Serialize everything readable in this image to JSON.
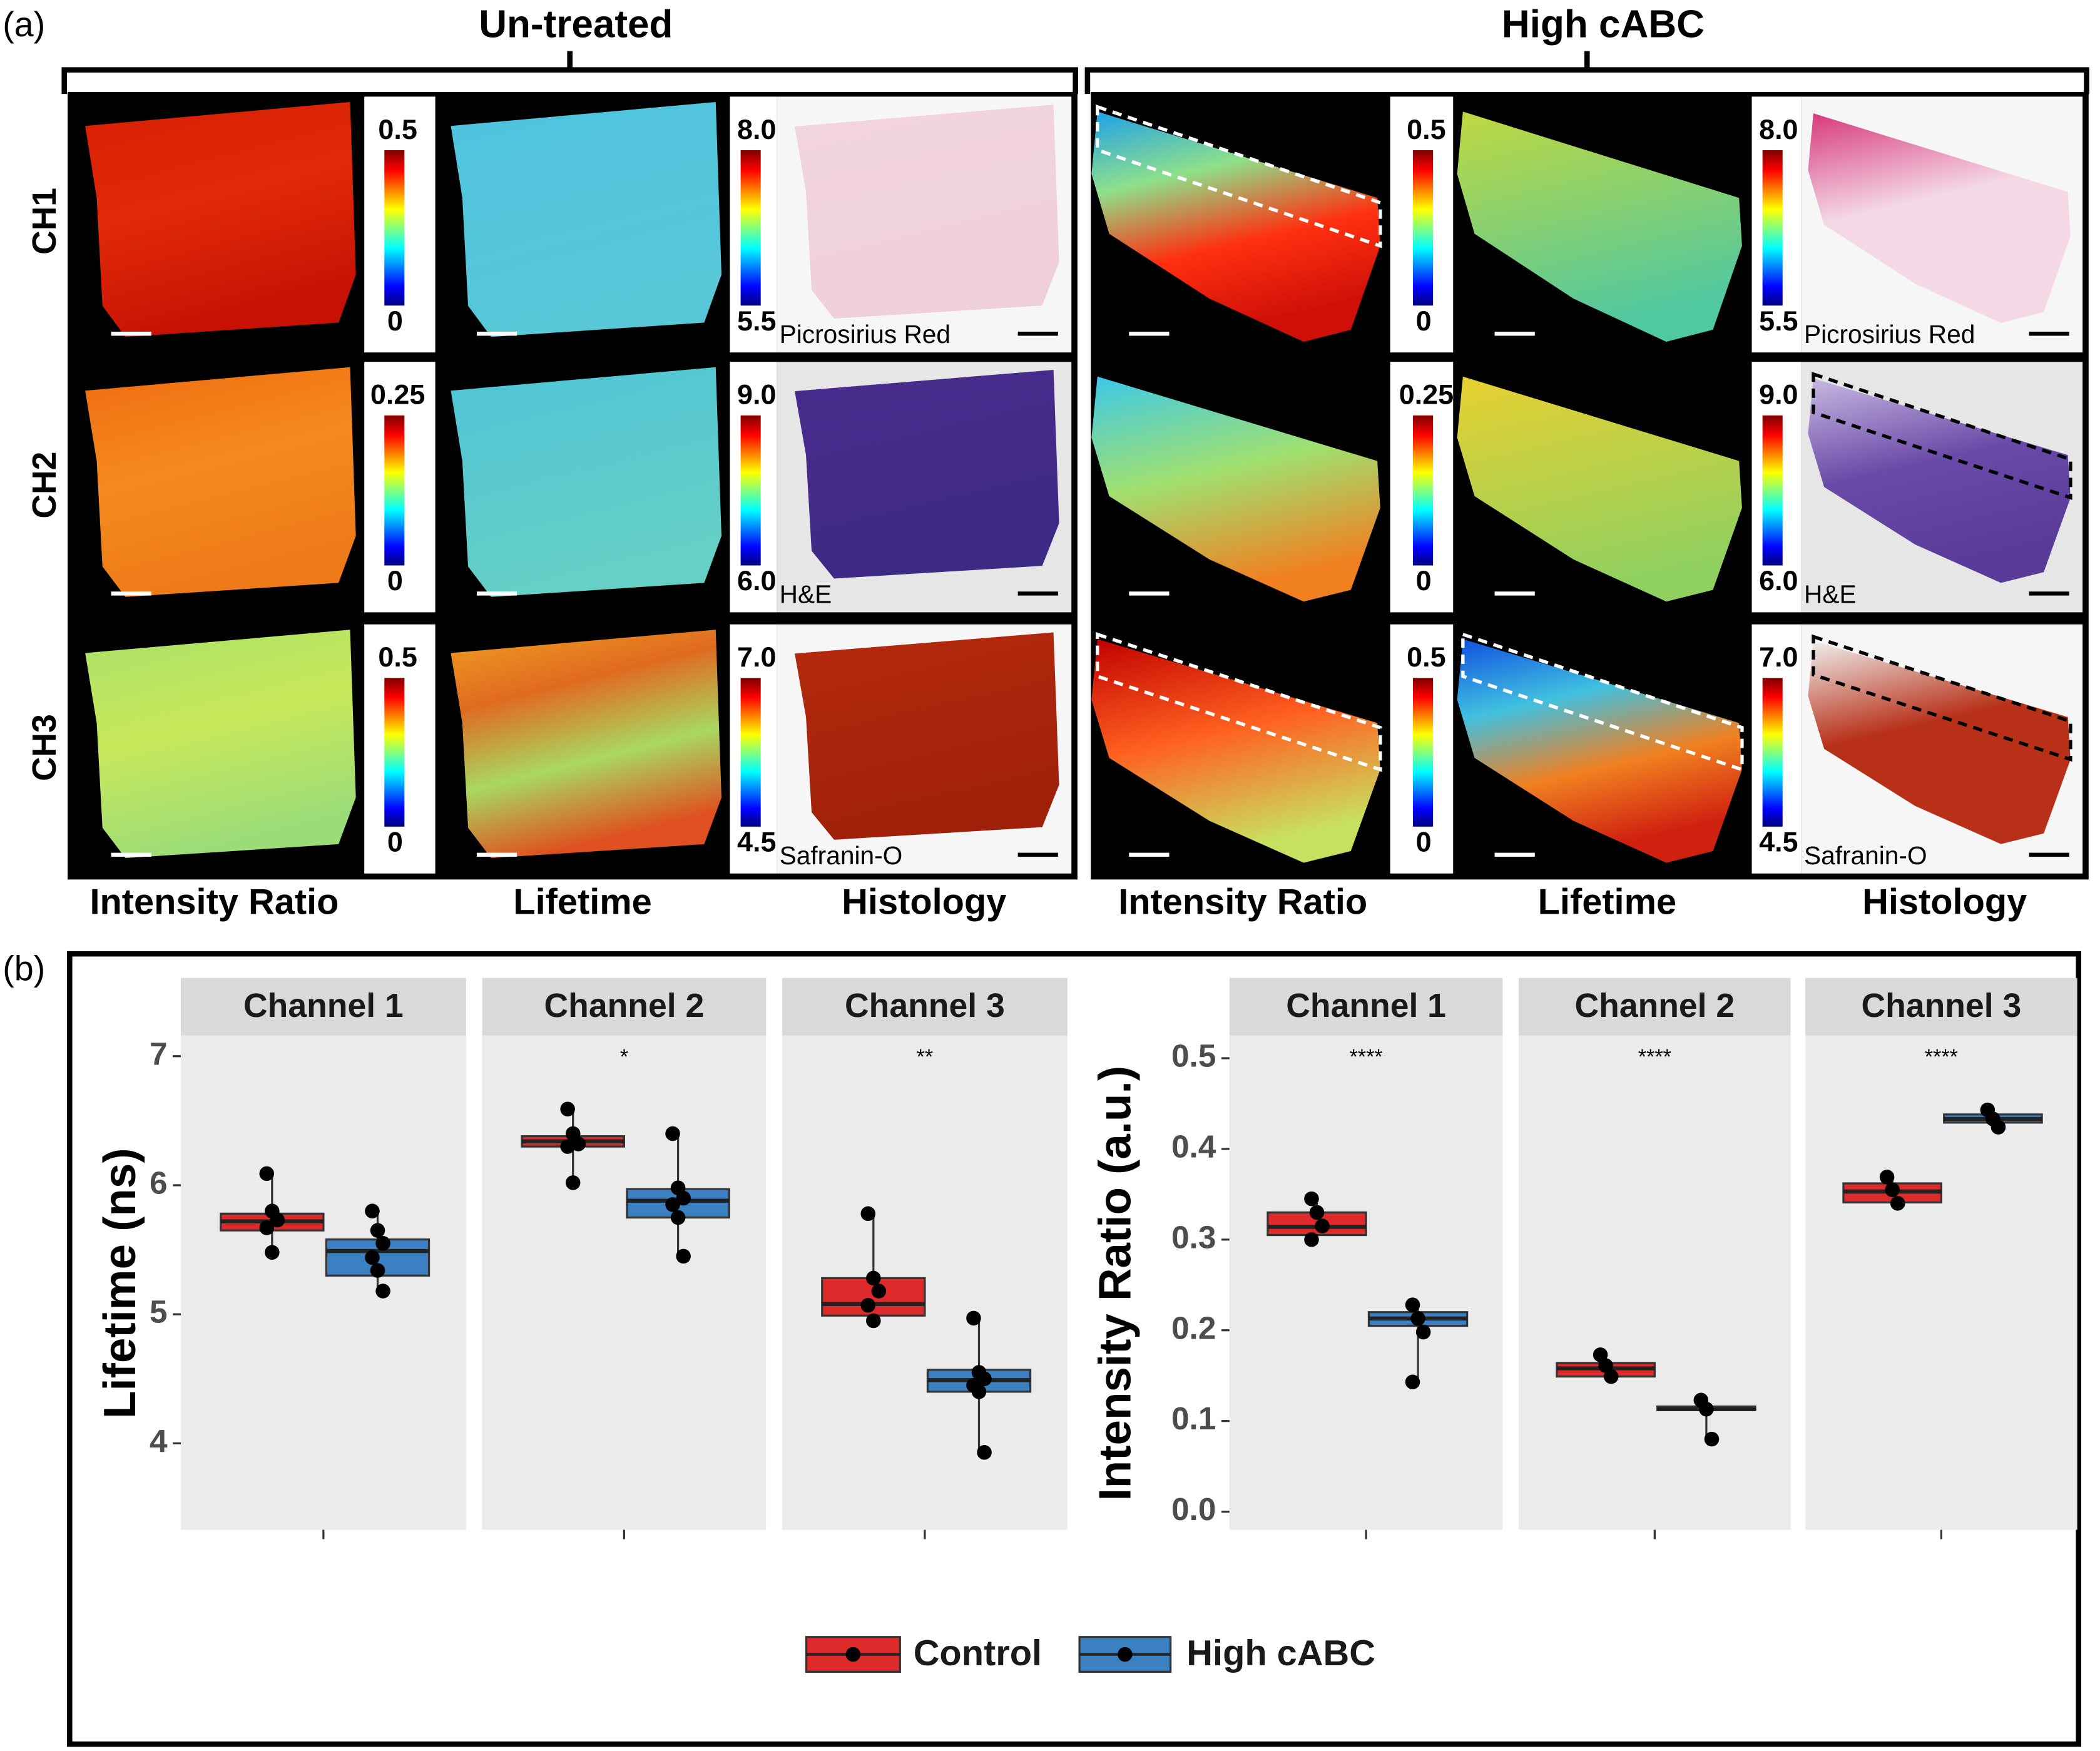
{
  "panel_labels": [
    "(a)",
    "(b)"
  ],
  "imaging": {
    "groups": [
      "Un-treated",
      "High cABC"
    ],
    "rows": [
      "CH1",
      "CH2",
      "CH3"
    ],
    "columns": [
      "Intensity Ratio",
      "Lifetime",
      "Histology"
    ],
    "intensity_scales": [
      {
        "max": "0.5",
        "min": "0"
      },
      {
        "max": "0.25",
        "min": "0"
      },
      {
        "max": "0.5",
        "min": "0"
      }
    ],
    "lifetime_scales": [
      {
        "max": "8.0",
        "min": "5.5"
      },
      {
        "max": "9.0",
        "min": "6.0"
      },
      {
        "max": "7.0",
        "min": "4.5"
      }
    ],
    "stains": [
      "Picrosirius Red",
      "H&E",
      "Safranin-O"
    ]
  },
  "legend": [
    {
      "name": "Control",
      "color": "#dd2a2a"
    },
    {
      "name": "High cABC",
      "color": "#3b80c0"
    }
  ],
  "chart_data": [
    {
      "type": "box",
      "ylabel": "Lifetime (ns)",
      "panels": [
        "Channel 1",
        "Channel 2",
        "Channel 3"
      ],
      "significance": [
        null,
        "*",
        "**"
      ],
      "ylim": [
        3.33,
        7.16
      ],
      "yticks": [
        4,
        5,
        6,
        7
      ],
      "grid": false,
      "series": [
        {
          "boxes": [
            {
              "min": 5.48,
              "q1": 5.65,
              "median": 5.72,
              "q3": 5.78,
              "max": 6.09,
              "points": [
                6.09,
                5.8,
                5.73,
                5.67,
                5.48
              ]
            },
            {
              "min": 6.02,
              "q1": 6.3,
              "median": 6.34,
              "q3": 6.38,
              "max": 6.59,
              "points": [
                6.59,
                6.4,
                6.32,
                6.3,
                6.02
              ]
            },
            {
              "min": 4.95,
              "q1": 4.99,
              "median": 5.08,
              "q3": 5.28,
              "max": 5.78,
              "points": [
                5.78,
                5.28,
                5.18,
                5.07,
                4.95
              ]
            }
          ]
        },
        {
          "boxes": [
            {
              "min": 5.18,
              "q1": 5.3,
              "median": 5.49,
              "q3": 5.58,
              "max": 5.8,
              "points": [
                5.8,
                5.65,
                5.55,
                5.44,
                5.34,
                5.18
              ]
            },
            {
              "min": 5.45,
              "q1": 5.75,
              "median": 5.88,
              "q3": 5.97,
              "max": 6.4,
              "points": [
                6.4,
                5.98,
                5.9,
                5.85,
                5.75,
                5.45
              ]
            },
            {
              "min": 3.93,
              "q1": 4.4,
              "median": 4.49,
              "q3": 4.57,
              "max": 4.97,
              "points": [
                4.97,
                4.55,
                4.5,
                4.45,
                4.4,
                3.93
              ]
            }
          ]
        }
      ]
    },
    {
      "type": "box",
      "ylabel": "Intensity Ratio (a.u.)",
      "panels": [
        "Channel 1",
        "Channel 2",
        "Channel 3"
      ],
      "significance": [
        "****",
        "****",
        "****"
      ],
      "ylim": [
        -0.02,
        0.525
      ],
      "yticks": [
        {
          "value": 0,
          "label": "0.0"
        },
        0.1,
        0.2,
        0.3,
        0.4,
        0.5
      ],
      "grid": false,
      "series": [
        {
          "boxes": [
            {
              "min": 0.3,
              "q1": 0.305,
              "median": 0.314,
              "q3": 0.33,
              "max": 0.345,
              "points": [
                0.345,
                0.33,
                0.315,
                0.3
              ]
            },
            {
              "min": 0.149,
              "q1": 0.149,
              "median": 0.158,
              "q3": 0.164,
              "max": 0.173,
              "points": [
                0.173,
                0.161,
                0.149
              ]
            },
            {
              "min": 0.34,
              "q1": 0.341,
              "median": 0.353,
              "q3": 0.362,
              "max": 0.369,
              "points": [
                0.369,
                0.355,
                0.34
              ]
            }
          ]
        },
        {
          "boxes": [
            {
              "min": 0.143,
              "q1": 0.205,
              "median": 0.213,
              "q3": 0.22,
              "max": 0.228,
              "points": [
                0.228,
                0.213,
                0.198,
                0.143
              ]
            },
            {
              "min": 0.08,
              "q1": 0.112,
              "median": 0.113,
              "q3": 0.116,
              "max": 0.123,
              "points": [
                0.123,
                0.113,
                0.08
              ]
            },
            {
              "min": 0.424,
              "q1": 0.429,
              "median": 0.433,
              "q3": 0.438,
              "max": 0.443,
              "points": [
                0.443,
                0.433,
                0.424
              ]
            }
          ]
        }
      ]
    }
  ]
}
